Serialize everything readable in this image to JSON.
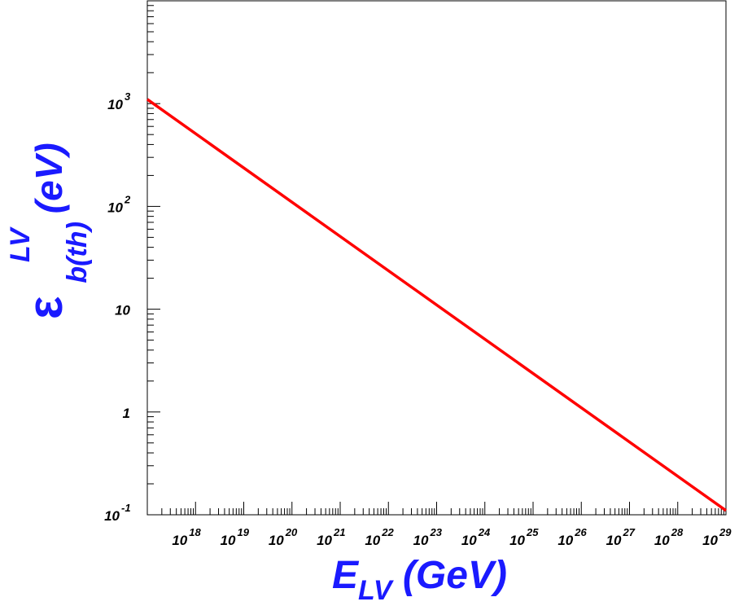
{
  "chart_data": {
    "type": "line",
    "xscale": "log",
    "yscale": "log",
    "xlim": [
      1e+17,
      1e+29
    ],
    "ylim": [
      0.1,
      10000
    ],
    "grid": false,
    "x_ticks": [
      {
        "value": 1e+18,
        "base": "10",
        "exp": "18"
      },
      {
        "value": 1e+19,
        "base": "10",
        "exp": "19"
      },
      {
        "value": 1e+20,
        "base": "10",
        "exp": "20"
      },
      {
        "value": 1e+21,
        "base": "10",
        "exp": "21"
      },
      {
        "value": 1e+22,
        "base": "10",
        "exp": "22"
      },
      {
        "value": 1e+23,
        "base": "10",
        "exp": "23"
      },
      {
        "value": 1e+24,
        "base": "10",
        "exp": "24"
      },
      {
        "value": 1e+25,
        "base": "10",
        "exp": "25"
      },
      {
        "value": 1e+26,
        "base": "10",
        "exp": "26"
      },
      {
        "value": 1e+27,
        "base": "10",
        "exp": "27"
      },
      {
        "value": 1e+28,
        "base": "10",
        "exp": "28"
      },
      {
        "value": 1e+29,
        "base": "10",
        "exp": "29"
      }
    ],
    "y_ticks": [
      {
        "value": 0.1,
        "base": "10",
        "exp": "-1"
      },
      {
        "value": 1,
        "base": "1",
        "exp": ""
      },
      {
        "value": 10,
        "base": "10",
        "exp": ""
      },
      {
        "value": 100,
        "base": "10",
        "exp": "2"
      },
      {
        "value": 1000,
        "base": "10",
        "exp": "3"
      }
    ],
    "xlabel": {
      "main": "E",
      "sub": "LV",
      "unit": " (GeV)"
    },
    "ylabel": {
      "main": "ε",
      "sup": "LV",
      "sub": "b(th)",
      "unit": "(eV)"
    },
    "series": [
      {
        "color": "#ff0000",
        "x": [
          1e+17,
          1e+29
        ],
        "y": [
          1100,
          0.11
        ]
      }
    ]
  }
}
